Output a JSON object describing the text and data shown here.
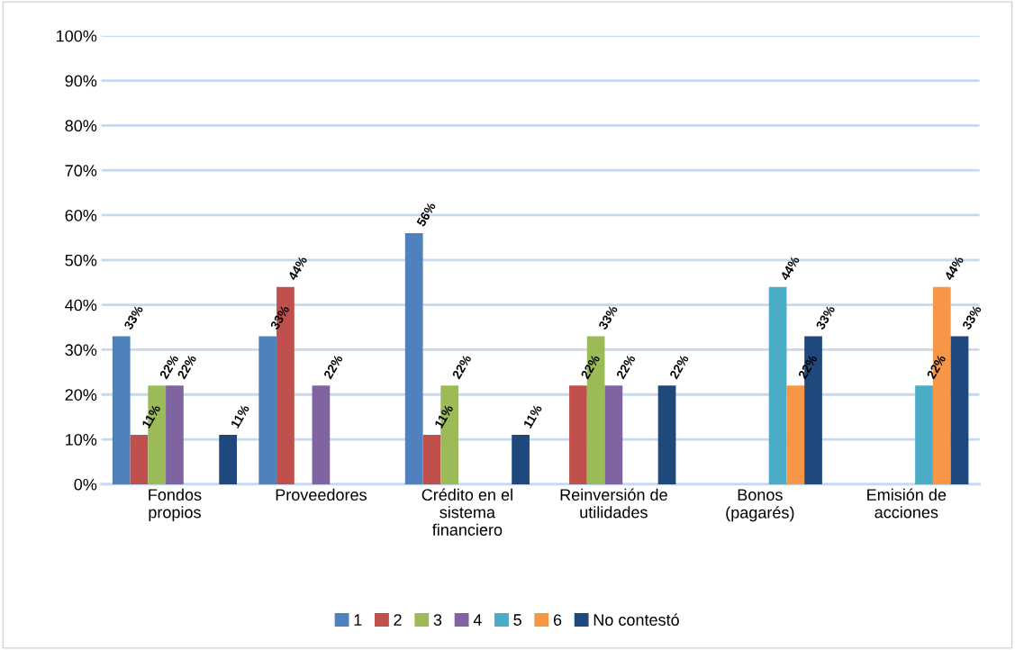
{
  "chart_data": {
    "type": "bar",
    "categories": [
      "Fondos\npropios",
      "Proveedores",
      "Crédito en el\nsistema\nfinanciero",
      "Reinversión de\nutilidades",
      "Bonos\n(pagarés)",
      "Emisión de\nacciones"
    ],
    "series": [
      {
        "name": "1",
        "color": "#4f81bd",
        "values": [
          33,
          33,
          56,
          0,
          0,
          0
        ],
        "value_labels": [
          "33%",
          "33%",
          "56%",
          null,
          null,
          null
        ]
      },
      {
        "name": "2",
        "color": "#c0504d",
        "values": [
          11,
          44,
          11,
          22,
          0,
          0
        ],
        "value_labels": [
          "11%",
          "44%",
          "11%",
          "22%",
          null,
          null
        ]
      },
      {
        "name": "3",
        "color": "#9bbb59",
        "values": [
          22,
          0,
          22,
          33,
          0,
          0
        ],
        "value_labels": [
          "22%",
          null,
          "22%",
          "33%",
          null,
          null
        ]
      },
      {
        "name": "4",
        "color": "#8064a2",
        "values": [
          22,
          22,
          0,
          22,
          0,
          0
        ],
        "value_labels": [
          "22%",
          "22%",
          null,
          "22%",
          null,
          null
        ]
      },
      {
        "name": "5",
        "color": "#4bacc6",
        "values": [
          0,
          0,
          0,
          0,
          44,
          22
        ],
        "value_labels": [
          null,
          null,
          null,
          null,
          "44%",
          "22%"
        ]
      },
      {
        "name": "6",
        "color": "#f79646",
        "values": [
          0,
          0,
          0,
          0,
          22,
          44
        ],
        "value_labels": [
          null,
          null,
          null,
          null,
          "22%",
          "44%"
        ]
      },
      {
        "name": "No contestó",
        "color": "#1f497d",
        "values": [
          11,
          0,
          11,
          22,
          33,
          33
        ],
        "value_labels": [
          "11%",
          null,
          "11%",
          "22%",
          "33%",
          "33%"
        ]
      }
    ],
    "ylim": [
      0,
      100
    ],
    "yticks": [
      {
        "value": 0,
        "label": "0%"
      },
      {
        "value": 10,
        "label": "10%"
      },
      {
        "value": 20,
        "label": "20%"
      },
      {
        "value": 30,
        "label": "30%"
      },
      {
        "value": 40,
        "label": "40%"
      },
      {
        "value": 50,
        "label": "50%"
      },
      {
        "value": 60,
        "label": "60%"
      },
      {
        "value": 70,
        "label": "70%"
      },
      {
        "value": 80,
        "label": "80%"
      },
      {
        "value": 90,
        "label": "90%"
      },
      {
        "value": 100,
        "label": "100%"
      }
    ],
    "grid": "y",
    "legend": "bottom"
  }
}
